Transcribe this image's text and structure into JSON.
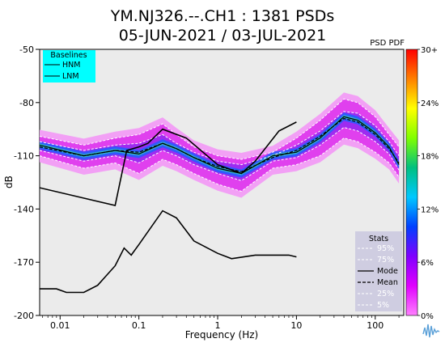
{
  "chart_data": {
    "type": "heatmap",
    "title": "YM.NJ326.--.CH1 : 1381 PSDs",
    "subtitle": "05-JUN-2021 / 03-JUL-2021",
    "corner_label": "PSD PDF",
    "xlabel": "Frequency (Hz)",
    "ylabel": "dB",
    "x_scale": "log",
    "xlim": [
      0.0055,
      230
    ],
    "ylim": [
      -200,
      -50
    ],
    "x_ticks": [
      {
        "value": 0.01,
        "label": "0.01"
      },
      {
        "value": 0.1,
        "label": "0.1"
      },
      {
        "value": 1,
        "label": "1"
      },
      {
        "value": 10,
        "label": "10"
      },
      {
        "value": 100,
        "label": "100"
      }
    ],
    "y_ticks": [
      {
        "value": -50,
        "label": "-50"
      },
      {
        "value": -80,
        "label": "-80"
      },
      {
        "value": -110,
        "label": "-110"
      },
      {
        "value": -140,
        "label": "-140"
      },
      {
        "value": -170,
        "label": "-170"
      },
      {
        "value": -200,
        "label": "-200"
      }
    ],
    "colorbar": {
      "ticks": [
        "30+",
        "24%",
        "18%",
        "12%",
        "6%",
        "0%"
      ],
      "colors": [
        "#ff0000",
        "#ff8000",
        "#ffff00",
        "#80ff00",
        "#00c080",
        "#00c8ff",
        "#0040ff",
        "#8000ff",
        "#e000ff",
        "#ff80ff"
      ]
    },
    "baselines": {
      "title": "Baselines",
      "series": [
        {
          "name": "HNM",
          "x": [
            0.0055,
            0.05,
            0.07,
            0.1,
            0.13,
            0.2,
            0.4,
            1,
            2,
            3,
            6,
            10
          ],
          "y": [
            -128,
            -138,
            -107,
            -105,
            -103,
            -95,
            -100,
            -115,
            -120,
            -113,
            -96,
            -91
          ]
        },
        {
          "name": "LNM",
          "x": [
            0.0055,
            0.009,
            0.012,
            0.02,
            0.03,
            0.05,
            0.065,
            0.08,
            0.1,
            0.2,
            0.3,
            0.5,
            1,
            1.5,
            3,
            5,
            8,
            10
          ],
          "y": [
            -185,
            -185,
            -187,
            -187,
            -183,
            -172,
            -162,
            -166,
            -160,
            -141,
            -145,
            -158,
            -165,
            -168,
            -166,
            -166,
            -166,
            -167
          ]
        }
      ]
    },
    "stats": {
      "title": "Stats",
      "series": [
        {
          "name": "95%",
          "x": [
            0.0055,
            0.02,
            0.05,
            0.1,
            0.2,
            0.3,
            0.5,
            1,
            2,
            5,
            10,
            20,
            40,
            60,
            100,
            150,
            200
          ],
          "y": [
            -99,
            -104,
            -100,
            -98,
            -92,
            -98,
            -105,
            -110,
            -112,
            -108,
            -100,
            -90,
            -78,
            -80,
            -88,
            -98,
            -105
          ]
        },
        {
          "name": "75%",
          "x": [
            0.0055,
            0.02,
            0.05,
            0.1,
            0.2,
            0.3,
            0.5,
            1,
            2,
            5,
            10,
            20,
            40,
            60,
            100,
            150,
            200
          ],
          "y": [
            -102,
            -107,
            -104,
            -103,
            -98,
            -103,
            -108,
            -113,
            -115,
            -110,
            -104,
            -96,
            -85,
            -86,
            -93,
            -102,
            -110
          ]
        },
        {
          "name": "Mode",
          "x": [
            0.0055,
            0.02,
            0.05,
            0.1,
            0.2,
            0.3,
            0.5,
            1,
            2,
            5,
            10,
            20,
            40,
            60,
            100,
            150,
            200
          ],
          "y": [
            -104,
            -110,
            -107,
            -109,
            -103,
            -106,
            -111,
            -117,
            -120,
            -110,
            -108,
            -100,
            -88,
            -90,
            -97,
            -105,
            -115
          ]
        },
        {
          "name": "Mean",
          "x": [
            0.0055,
            0.02,
            0.05,
            0.1,
            0.2,
            0.3,
            0.5,
            1,
            2,
            5,
            10,
            20,
            40,
            60,
            100,
            150,
            200
          ],
          "y": [
            -105,
            -110,
            -107,
            -108,
            -103,
            -106,
            -111,
            -116,
            -119,
            -111,
            -107,
            -99,
            -89,
            -91,
            -98,
            -106,
            -114
          ]
        },
        {
          "name": "25%",
          "x": [
            0.0055,
            0.02,
            0.05,
            0.1,
            0.2,
            0.3,
            0.5,
            1,
            2,
            5,
            10,
            20,
            40,
            60,
            100,
            150,
            200
          ],
          "y": [
            -107,
            -113,
            -110,
            -114,
            -107,
            -110,
            -115,
            -120,
            -124,
            -113,
            -111,
            -104,
            -94,
            -96,
            -102,
            -109,
            -118
          ]
        },
        {
          "name": "5%",
          "x": [
            0.0055,
            0.02,
            0.05,
            0.1,
            0.2,
            0.3,
            0.5,
            1,
            2,
            5,
            10,
            20,
            40,
            60,
            100,
            150,
            200
          ],
          "y": [
            -110,
            -117,
            -114,
            -120,
            -112,
            -115,
            -120,
            -126,
            -130,
            -117,
            -115,
            -110,
            -100,
            -102,
            -108,
            -114,
            -122
          ]
        }
      ]
    }
  }
}
